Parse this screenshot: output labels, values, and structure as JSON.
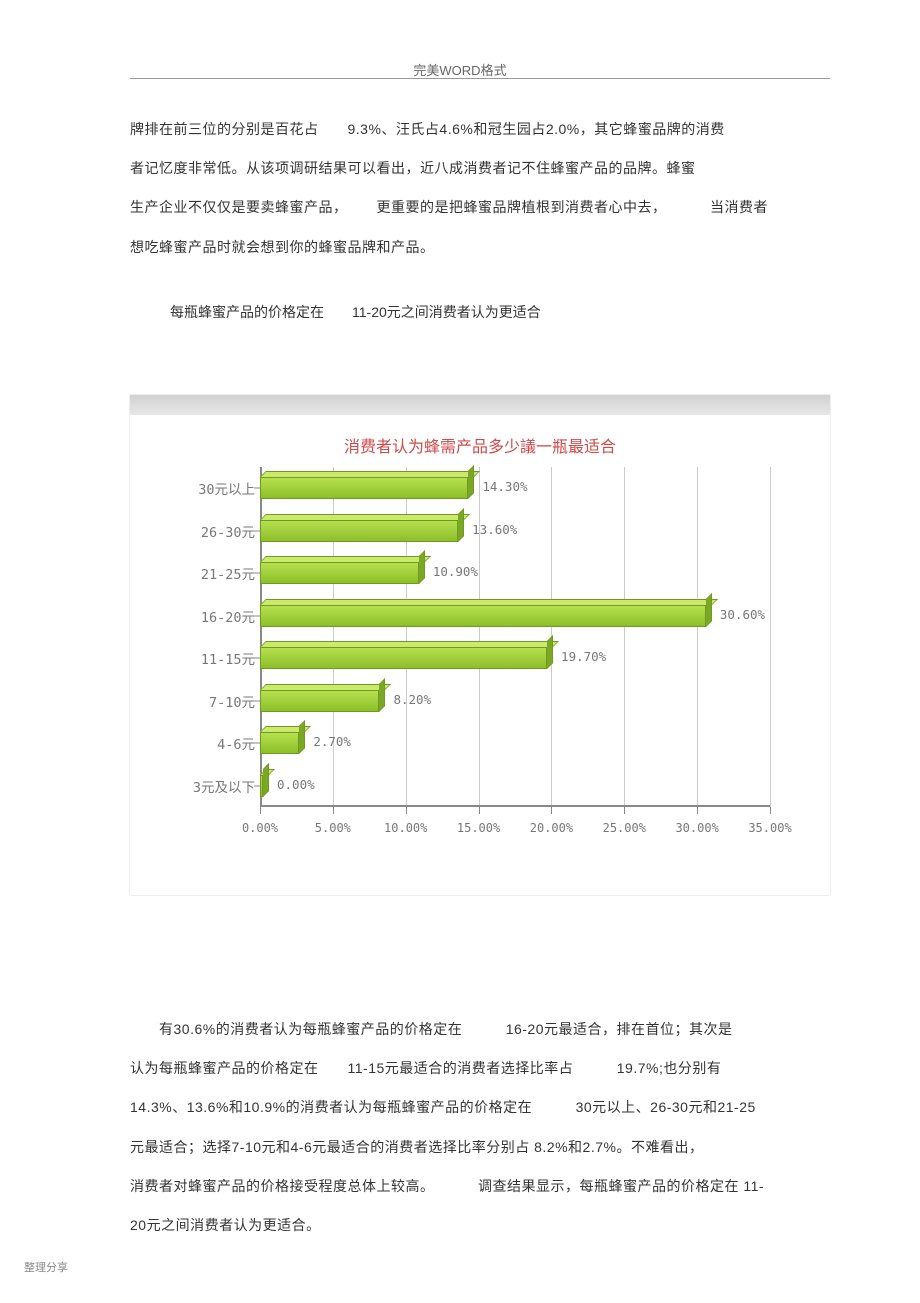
{
  "header": {
    "text": "完美WORD格式"
  },
  "paragraph1": {
    "line1": "牌排在前三位的分别是百花占  9.3%、汪氏占4.6%和冠生园占2.0%，其它蜂蜜品牌的消费",
    "line2": "者记忆度非常低。从该项调研结果可以看出，近八成消费者记不住蜂蜜产品的品牌。蜂蜜",
    "line3": "生产企业不仅仅是要卖蜂蜜产品，  更重要的是把蜂蜜品牌植根到消费者心中去，   当消费者",
    "line4": "想吃蜂蜜产品时就会想到你的蜂蜜品牌和产品。"
  },
  "heading2": "每瓶蜂蜜产品的价格定在  11-20元之间消费者认为更适合",
  "chart": {
    "type": "bar-horizontal-3d",
    "title": "消费者认为蜂需产品多少議一瓶最适合",
    "title_color": "#d04a4a",
    "bar_fill": "#9ccb38",
    "bar_border": "#6f9a1f",
    "grid_color": "#cbcbcb",
    "xlim": [
      0,
      35
    ],
    "xtick_step": 5,
    "xtick_labels": [
      "0.00%",
      "5.00%",
      "10.00%",
      "15.00%",
      "20.00%",
      "25.00%",
      "30.00%",
      "35.00%"
    ],
    "categories": [
      {
        "label": "30元以上",
        "value": 14.3,
        "value_label": "14.30%"
      },
      {
        "label": "26-30元",
        "value": 13.6,
        "value_label": "13.60%"
      },
      {
        "label": "21-25元",
        "value": 10.9,
        "value_label": "10.90%"
      },
      {
        "label": "16-20元",
        "value": 30.6,
        "value_label": "30.60%"
      },
      {
        "label": "11-15元",
        "value": 19.7,
        "value_label": "19.70%"
      },
      {
        "label": "7-10元",
        "value": 8.2,
        "value_label": "8.20%"
      },
      {
        "label": "4-6元",
        "value": 2.7,
        "value_label": "2.70%"
      },
      {
        "label": "3元及以下",
        "value": 0.0,
        "value_label": "0.00%"
      }
    ]
  },
  "paragraph2": {
    "line1": "  有30.6%的消费者认为每瓶蜂蜜产品的价格定在   16-20元最适合，排在首位；其次是",
    "line2": "认为每瓶蜂蜜产品的价格定在  11-15元最适合的消费者选择比率占   19.7%;也分别有",
    "line3": "14.3%、13.6%和10.9%的消费者认为每瓶蜂蜜产品的价格定在   30元以上、26-30元和21-25",
    "line4": "元最适合；选择7-10元和4-6元最适合的消费者选择比率分别占 8.2%和2.7%。不难看出，",
    "line5": "消费者对蜂蜜产品的价格接受程度总体上较高。   调查结果显示，每瓶蜂蜜产品的价格定在 11-",
    "line6": "20元之间消费者认为更适合。"
  },
  "footer": {
    "text": "整理分享"
  }
}
